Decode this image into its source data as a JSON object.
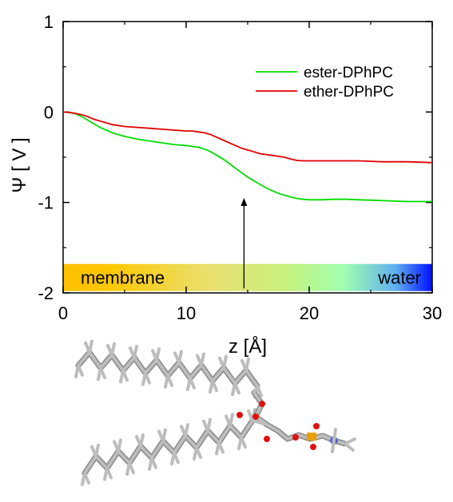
{
  "chart_data": {
    "type": "line",
    "xlabel": "z [Å]",
    "ylabel": "Ψ [ V ]",
    "xlim": [
      0,
      30
    ],
    "ylim": [
      -2,
      1
    ],
    "xticks": [
      "0",
      "10",
      "20",
      "30"
    ],
    "yticks": [
      "1",
      "0",
      "-1",
      "-2"
    ],
    "legend_position": "top-right",
    "series": [
      {
        "name": "ester-DPhPC",
        "color": "#00dd00",
        "x": [
          0,
          0.5,
          1,
          1.5,
          2,
          2.5,
          3,
          3.5,
          4,
          5,
          6,
          7,
          8,
          9,
          10,
          10.5,
          11,
          11.5,
          12,
          12.5,
          13,
          13.5,
          14,
          14.5,
          15,
          15.5,
          16,
          16.5,
          17,
          17.5,
          18,
          18.5,
          19,
          19.5,
          20,
          21,
          22,
          23,
          24,
          25,
          26,
          27,
          28,
          29,
          30
        ],
        "y": [
          0,
          -0.005,
          -0.02,
          -0.05,
          -0.09,
          -0.13,
          -0.17,
          -0.2,
          -0.23,
          -0.27,
          -0.3,
          -0.32,
          -0.34,
          -0.36,
          -0.37,
          -0.38,
          -0.39,
          -0.41,
          -0.44,
          -0.48,
          -0.52,
          -0.57,
          -0.62,
          -0.67,
          -0.72,
          -0.76,
          -0.8,
          -0.84,
          -0.87,
          -0.9,
          -0.92,
          -0.94,
          -0.955,
          -0.965,
          -0.97,
          -0.97,
          -0.965,
          -0.965,
          -0.97,
          -0.975,
          -0.98,
          -0.985,
          -0.99,
          -0.99,
          -0.99
        ]
      },
      {
        "name": "ether-DPhPC",
        "color": "#e00000",
        "x": [
          0,
          0.5,
          1,
          1.5,
          2,
          2.5,
          3,
          3.5,
          4,
          5,
          6,
          7,
          8,
          9,
          10,
          10.5,
          11,
          11.5,
          12,
          12.5,
          13,
          13.5,
          14,
          14.5,
          15,
          15.5,
          16,
          16.5,
          17,
          17.5,
          18,
          18.5,
          19,
          19.5,
          20,
          21,
          22,
          23,
          24,
          25,
          26,
          27,
          28,
          29,
          30
        ],
        "y": [
          0,
          -0.005,
          -0.015,
          -0.03,
          -0.05,
          -0.08,
          -0.1,
          -0.12,
          -0.14,
          -0.16,
          -0.17,
          -0.18,
          -0.19,
          -0.2,
          -0.21,
          -0.21,
          -0.22,
          -0.23,
          -0.25,
          -0.28,
          -0.31,
          -0.34,
          -0.37,
          -0.4,
          -0.42,
          -0.44,
          -0.46,
          -0.47,
          -0.48,
          -0.49,
          -0.5,
          -0.52,
          -0.535,
          -0.54,
          -0.54,
          -0.54,
          -0.54,
          -0.54,
          -0.54,
          -0.545,
          -0.55,
          -0.55,
          -0.55,
          -0.555,
          -0.56
        ]
      }
    ],
    "annotations": {
      "arrow": {
        "x": 14.7,
        "y_from": -1.95,
        "y_to": -0.95
      },
      "band": {
        "y_from": -1.98,
        "y_to": -1.68,
        "left_label": "membrane",
        "right_label": "water",
        "colors": [
          "#ffc000",
          "#ffcc00",
          "#e8e070",
          "#c8f078",
          "#a0ffb0",
          "#60c8f0",
          "#0010ff"
        ]
      }
    }
  }
}
